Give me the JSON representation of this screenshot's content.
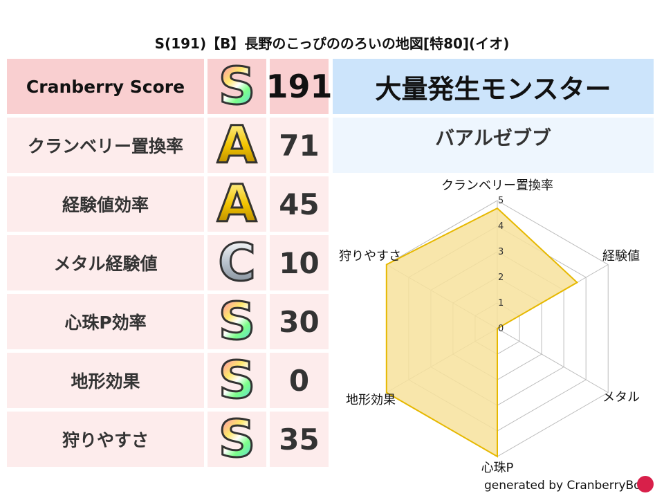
{
  "title": "S(191)【B】長野のこっぴののろいの地図[特80](イオ)",
  "score_header": {
    "label": "Cranberry Score",
    "grade": "S",
    "value": "191"
  },
  "rows": [
    {
      "label": "クランベリー置換率",
      "grade": "A",
      "value": "71"
    },
    {
      "label": "経験値効率",
      "grade": "A",
      "value": "45"
    },
    {
      "label": "メタル経験値",
      "grade": "C",
      "value": "10"
    },
    {
      "label": "心珠P効率",
      "grade": "S",
      "value": "30"
    },
    {
      "label": "地形効果",
      "grade": "S",
      "value": "0"
    },
    {
      "label": "狩りやすさ",
      "grade": "S",
      "value": "35"
    }
  ],
  "monster": {
    "header": "大量発生モンスター",
    "name": "バアルゼブブ"
  },
  "chart_data": {
    "type": "radar",
    "axes": [
      "クランベリー置換率",
      "経験値",
      "メタル",
      "心珠P",
      "地形効果",
      "狩りやすさ"
    ],
    "values": [
      4.7,
      3.6,
      0,
      5,
      5,
      5
    ],
    "range": [
      0,
      5
    ],
    "ticks": [
      "0",
      "1",
      "2",
      "3",
      "4",
      "5"
    ],
    "fill_color": "#f7e29c",
    "line_color": "#e6b800"
  },
  "footer": "generated by CranberryBot"
}
